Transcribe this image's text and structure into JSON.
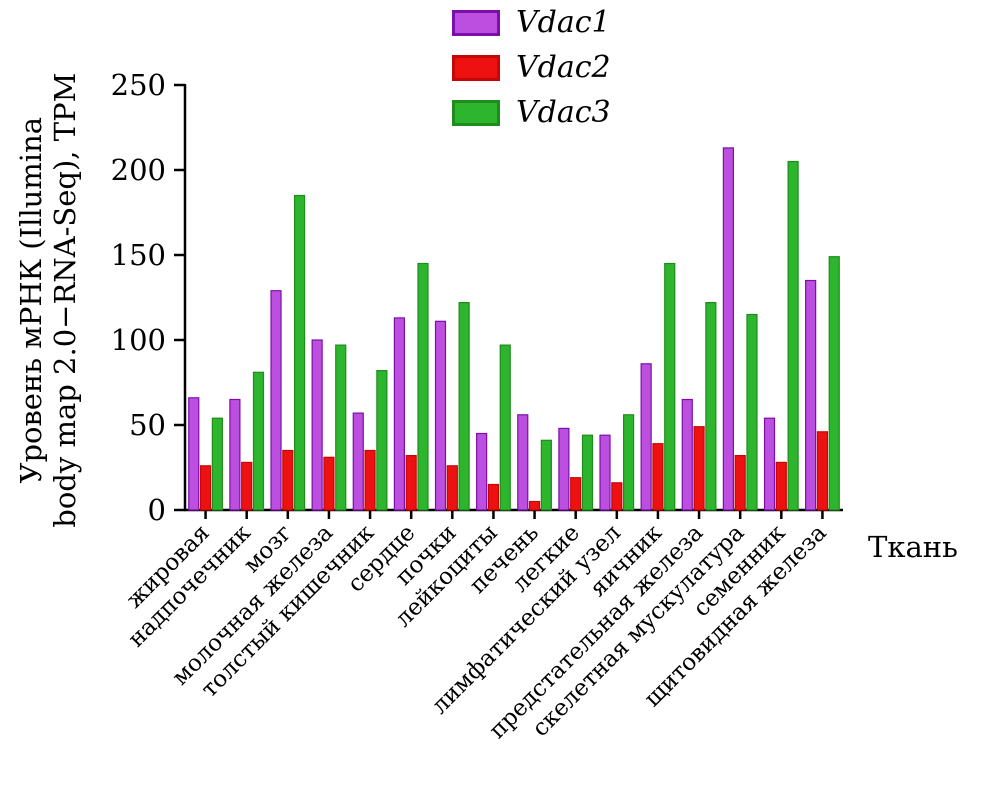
{
  "chart_data": {
    "type": "bar",
    "title": "",
    "xlabel": "Ткань",
    "ylabel": "Уровень мРНК (Illumina body map 2.0−RNA-Seq), TPM",
    "ylabel_lines": [
      "Уровень мРНК (Illumina",
      "body map 2.0−RNA-Seq), TPM"
    ],
    "ylim": [
      0,
      250
    ],
    "yticks": [
      0,
      50,
      100,
      150,
      200,
      250
    ],
    "grid": false,
    "legend_position": "top-center",
    "categories": [
      "жировая",
      "надпочечник",
      "мозг",
      "молочная железа",
      "толстый кишечник",
      "сердце",
      "почки",
      "лейкоциты",
      "печень",
      "легкие",
      "лимфатический узел",
      "яичник",
      "предстательная железа",
      "скелетная мускулатура",
      "семенник",
      "щитовидная железа"
    ],
    "series": [
      {
        "name": "Vdac1",
        "color": "#BC4FDF",
        "border": "#7A10A8",
        "values": [
          66,
          65,
          129,
          100,
          57,
          113,
          111,
          45,
          56,
          48,
          44,
          86,
          65,
          213,
          54,
          135
        ]
      },
      {
        "name": "Vdac2",
        "color": "#EE1111",
        "border": "#C40808",
        "values": [
          26,
          28,
          35,
          31,
          35,
          32,
          26,
          15,
          5,
          19,
          16,
          39,
          49,
          32,
          28,
          46
        ]
      },
      {
        "name": "Vdac3",
        "color": "#2DB52D",
        "border": "#1E8C1E",
        "values": [
          54,
          81,
          185,
          97,
          82,
          145,
          122,
          97,
          41,
          44,
          56,
          145,
          122,
          115,
          205,
          149
        ]
      }
    ]
  }
}
